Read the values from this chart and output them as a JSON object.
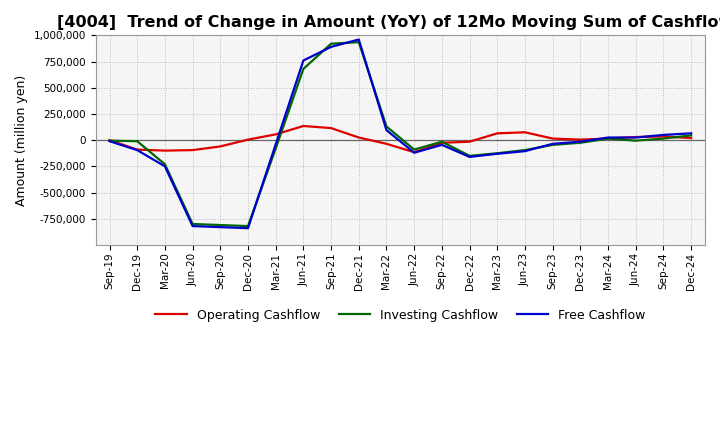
{
  "title": "[4004]  Trend of Change in Amount (YoY) of 12Mo Moving Sum of Cashflows",
  "ylabel": "Amount (million yen)",
  "background_color": "#ffffff",
  "plot_bg_color": "#f5f5f5",
  "grid_color": "#bbbbbb",
  "title_fontsize": 11.5,
  "axis_label_fontsize": 9,
  "tick_fontsize": 7.5,
  "legend_fontsize": 9,
  "x_labels": [
    "Sep-19",
    "Dec-19",
    "Mar-20",
    "Jun-20",
    "Sep-20",
    "Dec-20",
    "Mar-21",
    "Jun-21",
    "Sep-21",
    "Dec-21",
    "Mar-22",
    "Jun-22",
    "Sep-22",
    "Dec-22",
    "Mar-23",
    "Jun-23",
    "Sep-23",
    "Dec-23",
    "Mar-24",
    "Jun-24",
    "Sep-24",
    "Dec-24"
  ],
  "operating_cashflow": [
    0,
    -90000,
    -100000,
    -95000,
    -60000,
    5000,
    55000,
    135000,
    115000,
    25000,
    -35000,
    -115000,
    -25000,
    -15000,
    65000,
    75000,
    15000,
    5000,
    15000,
    30000,
    35000,
    20000
  ],
  "investing_cashflow": [
    -5000,
    -10000,
    -230000,
    -800000,
    -810000,
    -820000,
    -80000,
    680000,
    920000,
    935000,
    130000,
    -90000,
    -15000,
    -150000,
    -125000,
    -95000,
    -45000,
    -25000,
    15000,
    -5000,
    15000,
    45000
  ],
  "free_cashflow": [
    -10000,
    -95000,
    -250000,
    -820000,
    -830000,
    -840000,
    -40000,
    760000,
    890000,
    960000,
    95000,
    -120000,
    -45000,
    -160000,
    -130000,
    -105000,
    -35000,
    -15000,
    25000,
    25000,
    50000,
    65000
  ],
  "ylim": [
    -1000000,
    1000000
  ],
  "yticks": [
    -750000,
    -500000,
    -250000,
    0,
    250000,
    500000,
    750000,
    1000000
  ],
  "operating_color": "#dd0000",
  "investing_color": "#006600",
  "free_color": "#0000cc",
  "line_width": 1.6
}
